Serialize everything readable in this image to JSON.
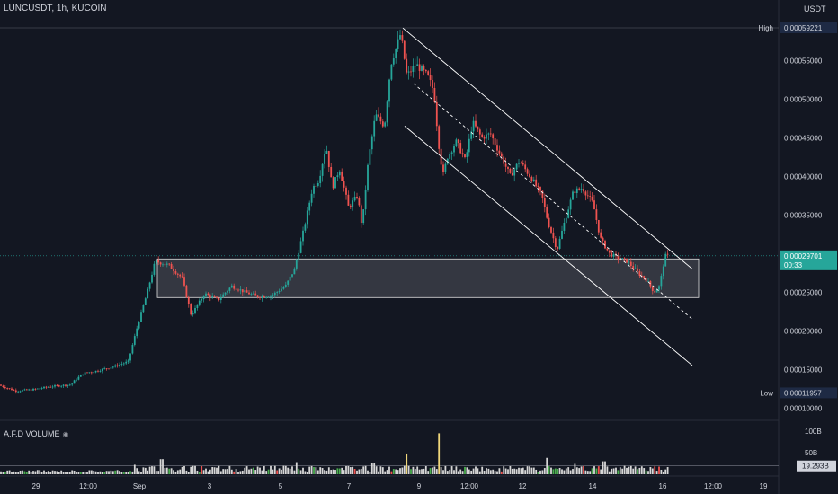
{
  "header": {
    "symbol": "LUNCUSDT, 1h, KUCOIN",
    "currency": "USDT"
  },
  "volume_pane": {
    "title": "A.F.D VOLUME",
    "eye_icon": "eye-icon"
  },
  "colors": {
    "background": "#131722",
    "up": "#26a69a",
    "down": "#ef5350",
    "volume_bar": "#d7d7d7",
    "volume_up": "#4caf50",
    "volume_down": "#ef5350",
    "volume_high": "#f0d77b",
    "channel": "#ffffff",
    "range_box_fill": "rgba(255,255,255,0.14)",
    "current_price_bg": "#26a69a",
    "high_low_bg": "#1e2a44"
  },
  "chart_data": [
    {
      "type": "candlestick",
      "title": "LUNCUSDT, 1h, KUCOIN",
      "unit": "USDT",
      "x_ticks": [
        "29",
        "12:00",
        "Sep",
        "3",
        "5",
        "7",
        "9",
        "12:00",
        "12",
        "14",
        "16",
        "12:00",
        "19"
      ],
      "y_ticks": [
        "0.00055000",
        "0.00050000",
        "0.00045000",
        "0.00040000",
        "0.00035000",
        "0.00030000",
        "0.00025000",
        "0.00020000",
        "0.00015000",
        "0.00010000"
      ],
      "ylim": [
        8.75e-05,
        0.000605
      ],
      "high": {
        "label": "High",
        "value": "0.00059221"
      },
      "low": {
        "label": "Low",
        "value": "0.00011957"
      },
      "current_price": {
        "value": "0.00029701",
        "countdown": "00:33"
      },
      "path": [
        [
          0,
          0.00013
        ],
        [
          20,
          0.000122
        ],
        [
          40,
          0.000124
        ],
        [
          60,
          0.000128
        ],
        [
          80,
          0.00013
        ],
        [
          95,
          0.000145
        ],
        [
          110,
          0.000148
        ],
        [
          130,
          0.000154
        ],
        [
          145,
          0.00016
        ],
        [
          155,
          0.000205
        ],
        [
          165,
          0.000245
        ],
        [
          175,
          0.00029
        ],
        [
          190,
          0.000285
        ],
        [
          205,
          0.000268
        ],
        [
          215,
          0.00022
        ],
        [
          230,
          0.000248
        ],
        [
          245,
          0.00024
        ],
        [
          260,
          0.000258
        ],
        [
          275,
          0.00025
        ],
        [
          290,
          0.000244
        ],
        [
          305,
          0.000246
        ],
        [
          320,
          0.000258
        ],
        [
          330,
          0.00028
        ],
        [
          340,
          0.00033
        ],
        [
          350,
          0.000385
        ],
        [
          357,
          0.000395
        ],
        [
          365,
          0.00044
        ],
        [
          372,
          0.000385
        ],
        [
          380,
          0.00041
        ],
        [
          390,
          0.00036
        ],
        [
          400,
          0.000375
        ],
        [
          405,
          0.000335
        ],
        [
          412,
          0.00042
        ],
        [
          420,
          0.00048
        ],
        [
          430,
          0.000465
        ],
        [
          437,
          0.000545
        ],
        [
          448,
          0.000585
        ],
        [
          455,
          0.00053
        ],
        [
          465,
          0.000545
        ],
        [
          478,
          0.00053
        ],
        [
          485,
          0.00051
        ],
        [
          490,
          0.000445
        ],
        [
          495,
          0.0004
        ],
        [
          500,
          0.000425
        ],
        [
          510,
          0.000445
        ],
        [
          520,
          0.00042
        ],
        [
          528,
          0.00047
        ],
        [
          538,
          0.00045
        ],
        [
          548,
          0.000455
        ],
        [
          560,
          0.000425
        ],
        [
          570,
          0.0004
        ],
        [
          580,
          0.00042
        ],
        [
          595,
          0.000395
        ],
        [
          605,
          0.000375
        ],
        [
          612,
          0.00034
        ],
        [
          622,
          0.000305
        ],
        [
          630,
          0.00034
        ],
        [
          640,
          0.00038
        ],
        [
          650,
          0.000385
        ],
        [
          662,
          0.000365
        ],
        [
          670,
          0.00032
        ],
        [
          680,
          0.0003
        ],
        [
          688,
          0.000295
        ],
        [
          700,
          0.00029
        ],
        [
          712,
          0.000275
        ],
        [
          722,
          0.000265
        ],
        [
          730,
          0.00025
        ],
        [
          736,
          0.000258
        ],
        [
          742,
          0.000297
        ]
      ],
      "range_box": [
        0.000293,
        0.000243
      ],
      "channel": {
        "upper": [
          [
            0.000592,
            448
          ],
          [
            0.00028,
            770
          ]
        ],
        "mid": [
          [
            0.00052,
            460
          ],
          [
            0.000215,
            770
          ]
        ],
        "lower": [
          [
            0.000465,
            450
          ],
          [
            0.000155,
            770
          ]
        ]
      }
    },
    {
      "type": "bar",
      "title": "A.F.D VOLUME",
      "y_ticks": [
        "100B",
        "50B"
      ],
      "ylim": [
        0,
        100
      ],
      "current_value": "19.293B"
    }
  ]
}
